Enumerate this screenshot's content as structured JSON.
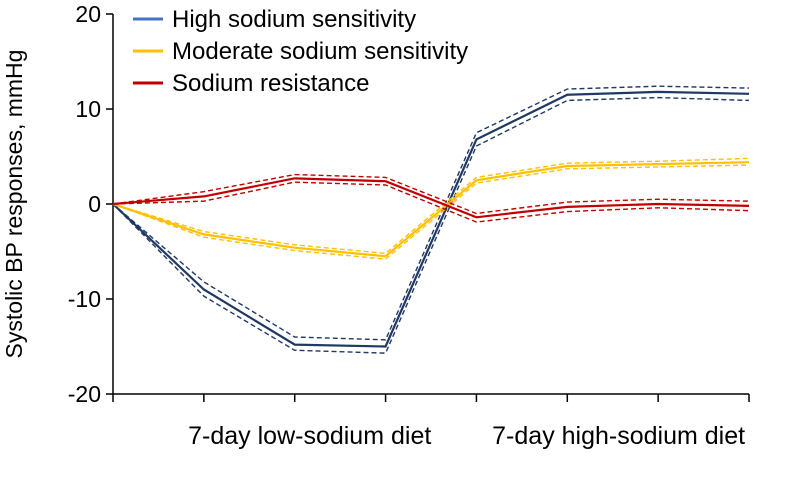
{
  "chart_data": {
    "type": "line",
    "title": "",
    "xlabel": "",
    "ylabel": "Systolic BP responses, mmHg",
    "ylim": [
      -20,
      20
    ],
    "yticks": [
      -20,
      -10,
      0,
      10,
      20
    ],
    "x": [
      0,
      1,
      2,
      3,
      4,
      5,
      6,
      7
    ],
    "x_tick_positions": [
      0,
      1,
      2,
      3,
      4,
      5,
      6,
      7
    ],
    "category_labels": [
      {
        "label": "7-day low-sodium diet",
        "center": 2
      },
      {
        "label": "7-day high-sodium diet",
        "center": 5.4
      }
    ],
    "grid": false,
    "legend_position": "top-left",
    "series": [
      {
        "name": "High sodium sensitivity",
        "legend_color": "#4472c4",
        "line_color": "#1f3864",
        "values": [
          0,
          -9.0,
          -14.8,
          -15.0,
          6.8,
          11.5,
          11.8,
          11.6
        ],
        "upper": [
          0,
          -8.2,
          -14.0,
          -14.3,
          7.5,
          12.1,
          12.4,
          12.2
        ],
        "lower": [
          0,
          -9.7,
          -15.4,
          -15.7,
          6.1,
          10.9,
          11.2,
          10.9
        ]
      },
      {
        "name": "Moderate sodium sensitivity",
        "legend_color": "#ffc000",
        "line_color": "#ffc000",
        "values": [
          0,
          -3.2,
          -4.6,
          -5.5,
          2.5,
          4.0,
          4.2,
          4.4
        ],
        "upper": [
          0,
          -2.9,
          -4.3,
          -5.2,
          2.8,
          4.3,
          4.5,
          4.8
        ],
        "lower": [
          0,
          -3.5,
          -4.9,
          -5.8,
          2.2,
          3.7,
          3.9,
          4.1
        ]
      },
      {
        "name": "Sodium resistance",
        "legend_color": "#c00000",
        "line_color": "#c00000",
        "values": [
          0,
          0.8,
          2.7,
          2.4,
          -1.4,
          -0.3,
          0.0,
          -0.2
        ],
        "upper": [
          0,
          1.3,
          3.1,
          2.8,
          -1.0,
          0.2,
          0.5,
          0.3
        ],
        "lower": [
          0,
          0.3,
          2.3,
          2.0,
          -1.9,
          -0.8,
          -0.4,
          -0.7
        ]
      }
    ]
  }
}
